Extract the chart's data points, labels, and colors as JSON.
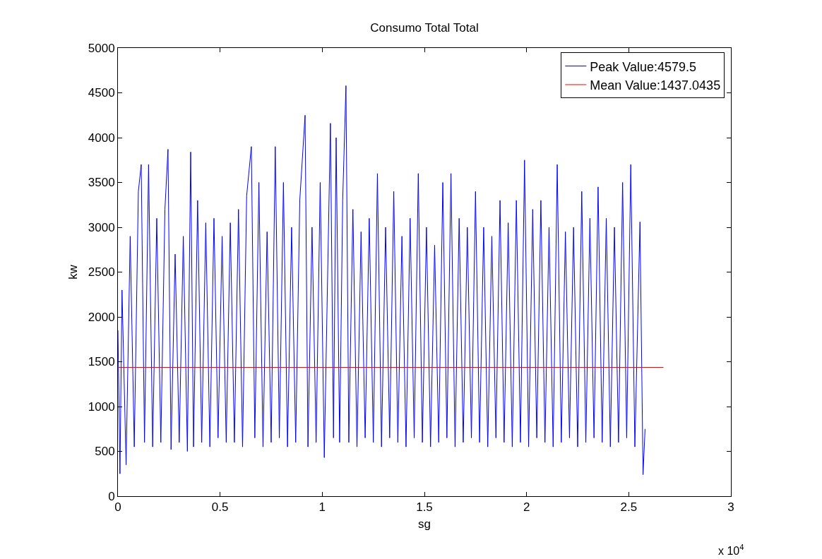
{
  "chart_data": {
    "type": "line",
    "title": "Consumo Total Total",
    "xlabel": "sg",
    "ylabel": "kw",
    "series": [
      {
        "name": "Peak Value:4579.5",
        "color": "#0000ff",
        "x": [
          0,
          0.01,
          0.02,
          0.04,
          0.06,
          0.08,
          0.1,
          0.114,
          0.13,
          0.15,
          0.17,
          0.19,
          0.21,
          0.23,
          0.245,
          0.26,
          0.28,
          0.3,
          0.32,
          0.34,
          0.356,
          0.37,
          0.39,
          0.41,
          0.43,
          0.45,
          0.47,
          0.49,
          0.51,
          0.53,
          0.55,
          0.57,
          0.59,
          0.61,
          0.63,
          0.653,
          0.67,
          0.69,
          0.71,
          0.73,
          0.75,
          0.77,
          0.79,
          0.81,
          0.83,
          0.85,
          0.87,
          0.89,
          0.916,
          0.93,
          0.95,
          0.97,
          0.99,
          1.01,
          1.04,
          1.055,
          1.068,
          1.085,
          1.1,
          1.116,
          1.13,
          1.15,
          1.17,
          1.19,
          1.21,
          1.23,
          1.25,
          1.27,
          1.29,
          1.31,
          1.33,
          1.35,
          1.37,
          1.39,
          1.41,
          1.43,
          1.45,
          1.47,
          1.49,
          1.51,
          1.53,
          1.55,
          1.57,
          1.59,
          1.61,
          1.63,
          1.65,
          1.67,
          1.69,
          1.71,
          1.73,
          1.75,
          1.77,
          1.79,
          1.81,
          1.83,
          1.85,
          1.87,
          1.89,
          1.91,
          1.93,
          1.95,
          1.97,
          1.99,
          2.01,
          2.03,
          2.05,
          2.07,
          2.09,
          2.11,
          2.13,
          2.15,
          2.17,
          2.19,
          2.21,
          2.23,
          2.25,
          2.27,
          2.29,
          2.31,
          2.33,
          2.35,
          2.37,
          2.39,
          2.41,
          2.43,
          2.45,
          2.47,
          2.49,
          2.51,
          2.53,
          2.555,
          2.57,
          2.58
        ],
        "values": [
          1850,
          250,
          2300,
          350,
          2900,
          550,
          3400,
          3700,
          600,
          3700,
          550,
          3100,
          600,
          3200,
          3870,
          520,
          2700,
          600,
          2900,
          500,
          3840,
          550,
          3300,
          600,
          3050,
          550,
          3100,
          650,
          2900,
          600,
          3050,
          600,
          3200,
          550,
          3350,
          3900,
          650,
          3500,
          550,
          2950,
          600,
          3900,
          650,
          3500,
          550,
          3000,
          600,
          3300,
          4250,
          550,
          3000,
          600,
          3500,
          430,
          4160,
          650,
          4000,
          600,
          3300,
          4579.5,
          600,
          3200,
          550,
          2950,
          650,
          3100,
          600,
          3600,
          550,
          3000,
          650,
          3400,
          600,
          2900,
          550,
          3100,
          650,
          3600,
          600,
          3000,
          550,
          2800,
          600,
          3500,
          650,
          3600,
          550,
          3100,
          600,
          3000,
          650,
          3400,
          600,
          3000,
          550,
          2900,
          650,
          3300,
          600,
          3050,
          550,
          3300,
          600,
          3750,
          550,
          3200,
          650,
          3300,
          600,
          3000,
          550,
          3700,
          600,
          2950,
          650,
          3000,
          550,
          3400,
          600,
          3100,
          650,
          3450,
          600,
          3100,
          550,
          3000,
          600,
          3500,
          650,
          3700,
          550,
          3060,
          240,
          750
        ]
      },
      {
        "name": "Mean Value:1437.0435",
        "color": "#ff0000",
        "x": [
          0,
          2.67
        ],
        "values": [
          1437.0435,
          1437.0435
        ]
      }
    ],
    "xlim": [
      0,
      3
    ],
    "xticks": [
      0,
      0.5,
      1,
      1.5,
      2,
      2.5,
      3
    ],
    "ylim": [
      0,
      5000
    ],
    "yticks": [
      0,
      500,
      1000,
      1500,
      2000,
      2500,
      3000,
      3500,
      4000,
      4500,
      5000
    ],
    "annotations": [
      "x 10$^{4}$"
    ],
    "legend": "top right",
    "marker": "none",
    "line_style": "solid"
  }
}
